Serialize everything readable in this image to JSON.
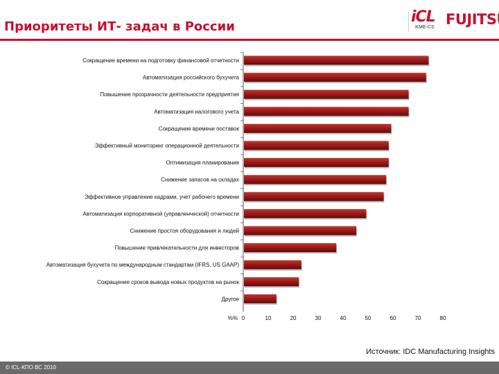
{
  "header": {
    "title": "Приоритеты ИТ- задач в России",
    "logo_icl": "iCL",
    "logo_icl_sub": "KME-CS",
    "logo_fujitsu": "FUJITSU"
  },
  "colors": {
    "brand_red": "#c8102e",
    "bar_fill": "#a11a1a",
    "bar_highlight": "#c0392b",
    "bar_shadow": "#5f0d0d",
    "footer_gray": "#6a6a6a"
  },
  "chart_data": {
    "type": "bar",
    "orientation": "horizontal",
    "title": "",
    "xlabel": "",
    "ylabel": "",
    "unit_label": "%%",
    "xlim": [
      0,
      80
    ],
    "xticks": [
      "0",
      "10",
      "20",
      "30",
      "40",
      "50",
      "60",
      "70",
      "80"
    ],
    "grid": false,
    "categories": [
      "Сокращение времени на подготовку финансовой отчетности",
      "Автоматизация российского бухучета",
      "Повышение прозрачности деятельности предприятия",
      "Автоматизация налогового учета",
      "Сокращение времени поставок",
      "Эффективный мониторинг операционной деятельности",
      "Оптимизация планирования",
      "Снижение запасов на складах",
      "Эффективное управление кадрами, учет рабочего времени",
      "Автоматизация корпоративной (управленческой) отчетности",
      "Снижение простоя оборудования и людей",
      "Повышение привлекательности для инвесторов",
      "Автоматизация бухучета по международным стандартам (IFRS, US GAAP)",
      "Сокращение сроков вывода новых продуктов на рынок",
      "Другое"
    ],
    "values": [
      74,
      73,
      66,
      66,
      59,
      58,
      58,
      57,
      56,
      49,
      45,
      37,
      23,
      22,
      13
    ]
  },
  "source_text": "Источник: IDC Manufacturing Insights",
  "footer": {
    "copyright": "© ICL-КПО ВС 2010"
  }
}
